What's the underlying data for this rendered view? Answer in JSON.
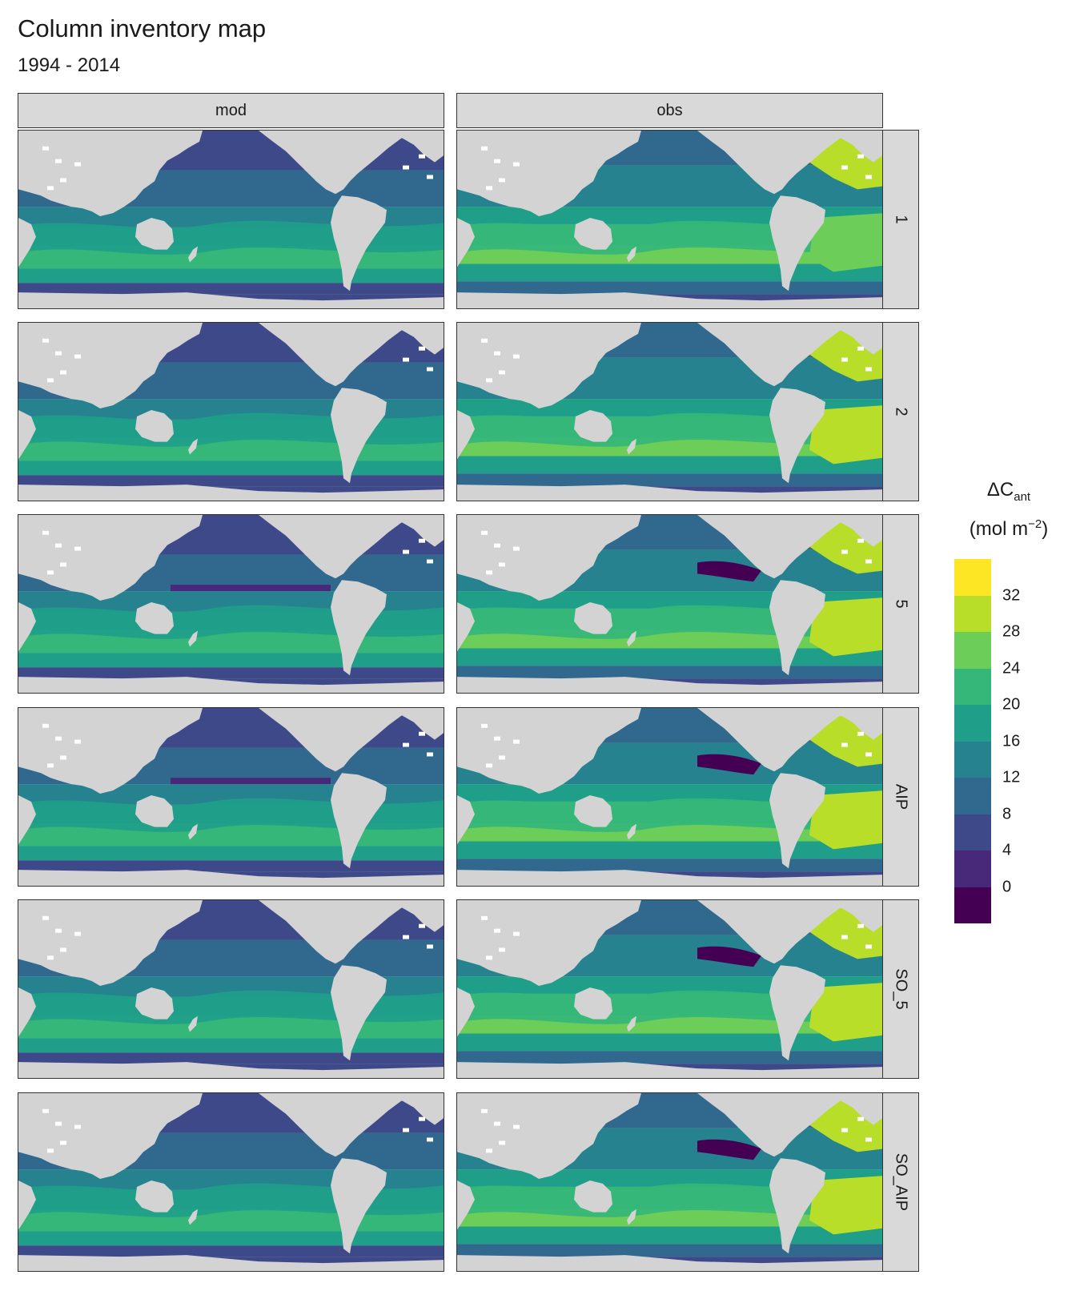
{
  "title": "Column inventory map",
  "subtitle": "1994 - 2014",
  "columns": [
    "mod",
    "obs"
  ],
  "rows": [
    "1",
    "2",
    "5",
    "AIP",
    "SO_5",
    "SO_AIP"
  ],
  "legend": {
    "title_main": "ΔC",
    "title_sub": "ant",
    "unit_pre": "(mol m",
    "unit_sup": "−2",
    "unit_post": ")",
    "breaks": [
      "32",
      "28",
      "24",
      "20",
      "16",
      "12",
      "8",
      "4",
      "0"
    ],
    "colors": [
      "#fde725",
      "#b8de29",
      "#6cce59",
      "#35b779",
      "#1f9e89",
      "#26828e",
      "#31688e",
      "#3e4989",
      "#482878",
      "#440154"
    ]
  },
  "colors": {
    "land": "#d3d3d3",
    "strip": "#d9d9d9"
  }
}
